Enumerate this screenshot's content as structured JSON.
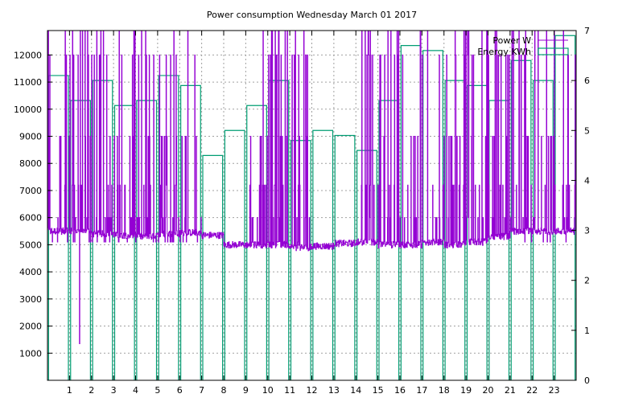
{
  "chart_data": {
    "type": "line",
    "title": "Power consumption Wednesday March 01 2017",
    "xlabel": "",
    "ylabel": "",
    "y2label": "",
    "xlim": [
      0,
      24
    ],
    "ylim": [
      0,
      12900
    ],
    "y2lim": [
      0,
      7
    ],
    "x_ticks": [
      1,
      2,
      3,
      4,
      5,
      6,
      7,
      8,
      9,
      10,
      11,
      12,
      13,
      14,
      15,
      16,
      17,
      18,
      19,
      20,
      21,
      22,
      23
    ],
    "y_ticks": [
      1000,
      2000,
      3000,
      4000,
      5000,
      6000,
      7000,
      8000,
      9000,
      10000,
      11000,
      12000
    ],
    "y2_ticks": [
      0,
      1,
      2,
      3,
      4,
      5,
      6,
      7
    ],
    "grid": true,
    "legend_position": "top-right",
    "colors": {
      "power": "#9400d3",
      "energy": "#009e73",
      "grid": "#a0a0a0"
    },
    "series": [
      {
        "name": "Power W",
        "axis": "left",
        "style": "line",
        "base_hourly": [
          5500,
          5500,
          5400,
          5350,
          5300,
          5400,
          5450,
          5350,
          5000,
          5000,
          5000,
          4900,
          4950,
          5050,
          5100,
          5000,
          5000,
          5100,
          5000,
          5100,
          5300,
          5500,
          5500,
          5500
        ],
        "spike_hours": [
          0,
          1,
          2,
          3,
          4,
          5,
          6,
          9,
          10,
          11,
          14,
          15,
          16,
          17,
          18,
          19,
          20,
          21,
          22,
          23
        ],
        "spike_values": [
          5100,
          6000,
          7200,
          9000,
          12000,
          12900
        ],
        "min_value": 1350
      },
      {
        "name": "Energy KWh",
        "axis": "right",
        "style": "boxes",
        "x": [
          0,
          1,
          2,
          3,
          4,
          5,
          6,
          7,
          8,
          9,
          10,
          11,
          12,
          13,
          14,
          15,
          16,
          17,
          18,
          19,
          20,
          21,
          22,
          23
        ],
        "values": [
          6.1,
          5.6,
          6.0,
          5.5,
          5.6,
          6.1,
          5.9,
          4.5,
          5.0,
          5.5,
          6.0,
          4.8,
          5.0,
          4.9,
          4.6,
          5.6,
          6.7,
          6.6,
          6.0,
          5.9,
          5.6,
          6.4,
          6.0,
          6.9
        ]
      }
    ]
  }
}
